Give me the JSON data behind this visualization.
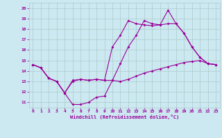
{
  "xlabel": "Windchill (Refroidissement éolien,°C)",
  "bg_color": "#cce8f0",
  "line_color": "#990099",
  "grid_color": "#aacccc",
  "xlim": [
    -0.5,
    23.5
  ],
  "ylim": [
    10.5,
    20.5
  ],
  "xticks": [
    0,
    1,
    2,
    3,
    4,
    5,
    6,
    7,
    8,
    9,
    10,
    11,
    12,
    13,
    14,
    15,
    16,
    17,
    18,
    19,
    20,
    21,
    22,
    23
  ],
  "yticks": [
    11,
    12,
    13,
    14,
    15,
    16,
    17,
    18,
    19,
    20
  ],
  "line1_x": [
    0,
    1,
    2,
    3,
    4,
    5,
    6,
    7,
    8,
    9,
    10,
    11,
    12,
    13,
    14,
    15,
    16,
    17,
    18,
    19,
    20,
    21,
    22,
    23
  ],
  "line1_y": [
    14.6,
    14.3,
    13.3,
    13.0,
    11.9,
    10.8,
    10.8,
    11.0,
    11.5,
    11.6,
    13.1,
    14.7,
    16.3,
    17.4,
    18.8,
    18.5,
    18.4,
    19.8,
    18.5,
    17.6,
    16.3,
    15.3,
    14.7,
    14.6
  ],
  "line2_x": [
    0,
    1,
    2,
    3,
    4,
    5,
    6,
    7,
    8,
    9,
    10,
    11,
    12,
    13,
    14,
    15,
    16,
    17,
    18,
    19,
    20,
    21,
    22,
    23
  ],
  "line2_y": [
    14.6,
    14.3,
    13.3,
    13.0,
    11.9,
    13.1,
    13.2,
    13.1,
    13.2,
    13.1,
    13.1,
    13.0,
    13.2,
    13.5,
    13.8,
    14.0,
    14.2,
    14.4,
    14.6,
    14.8,
    14.9,
    15.0,
    14.7,
    14.6
  ],
  "line3_x": [
    0,
    1,
    2,
    3,
    4,
    5,
    6,
    7,
    8,
    9,
    10,
    11,
    12,
    13,
    14,
    15,
    16,
    17,
    18,
    19,
    20,
    21,
    22,
    23
  ],
  "line3_y": [
    14.6,
    14.3,
    13.3,
    13.0,
    11.9,
    13.0,
    13.2,
    13.1,
    13.2,
    13.1,
    16.3,
    17.4,
    18.8,
    18.5,
    18.4,
    18.3,
    18.4,
    18.5,
    18.5,
    17.6,
    16.3,
    15.3,
    14.7,
    14.6
  ]
}
